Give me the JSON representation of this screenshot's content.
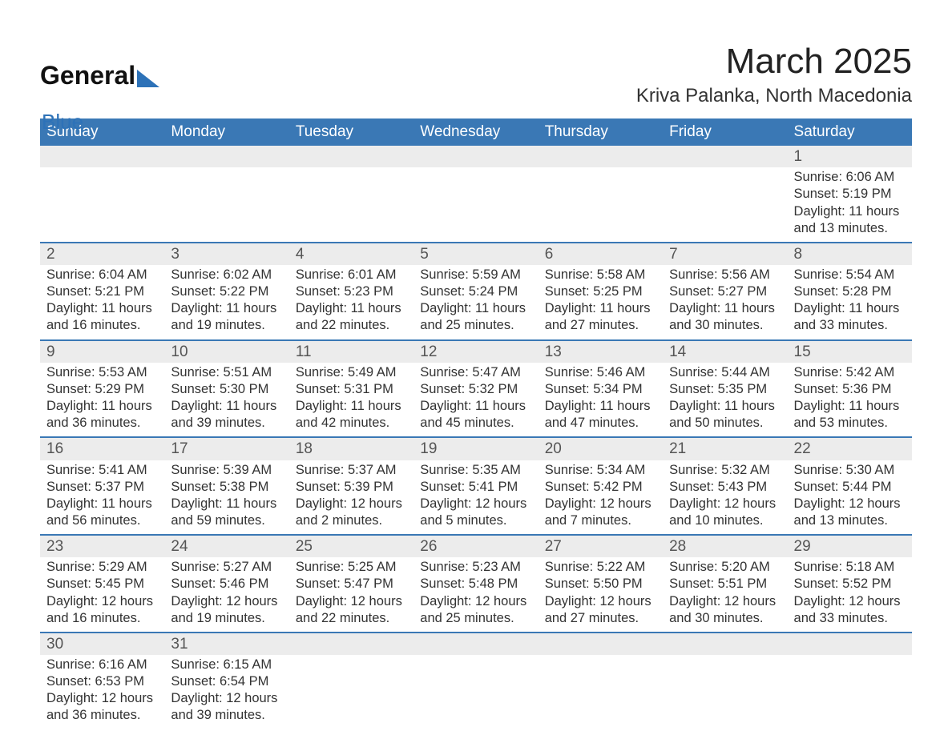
{
  "logo": {
    "word1": "General",
    "word2": "Blue"
  },
  "title": "March 2025",
  "location": "Kriva Palanka, North Macedonia",
  "colors": {
    "header_bg": "#3a78b5",
    "header_text": "#ffffff",
    "row_separator": "#3a78b5",
    "daynum_bg": "#ececec",
    "body_text": "#333333",
    "logo_accent": "#2d72b8"
  },
  "day_headers": [
    "Sunday",
    "Monday",
    "Tuesday",
    "Wednesday",
    "Thursday",
    "Friday",
    "Saturday"
  ],
  "weeks": [
    [
      null,
      null,
      null,
      null,
      null,
      null,
      {
        "n": "1",
        "sr": "Sunrise: 6:06 AM",
        "ss": "Sunset: 5:19 PM",
        "d1": "Daylight: 11 hours",
        "d2": "and 13 minutes."
      }
    ],
    [
      {
        "n": "2",
        "sr": "Sunrise: 6:04 AM",
        "ss": "Sunset: 5:21 PM",
        "d1": "Daylight: 11 hours",
        "d2": "and 16 minutes."
      },
      {
        "n": "3",
        "sr": "Sunrise: 6:02 AM",
        "ss": "Sunset: 5:22 PM",
        "d1": "Daylight: 11 hours",
        "d2": "and 19 minutes."
      },
      {
        "n": "4",
        "sr": "Sunrise: 6:01 AM",
        "ss": "Sunset: 5:23 PM",
        "d1": "Daylight: 11 hours",
        "d2": "and 22 minutes."
      },
      {
        "n": "5",
        "sr": "Sunrise: 5:59 AM",
        "ss": "Sunset: 5:24 PM",
        "d1": "Daylight: 11 hours",
        "d2": "and 25 minutes."
      },
      {
        "n": "6",
        "sr": "Sunrise: 5:58 AM",
        "ss": "Sunset: 5:25 PM",
        "d1": "Daylight: 11 hours",
        "d2": "and 27 minutes."
      },
      {
        "n": "7",
        "sr": "Sunrise: 5:56 AM",
        "ss": "Sunset: 5:27 PM",
        "d1": "Daylight: 11 hours",
        "d2": "and 30 minutes."
      },
      {
        "n": "8",
        "sr": "Sunrise: 5:54 AM",
        "ss": "Sunset: 5:28 PM",
        "d1": "Daylight: 11 hours",
        "d2": "and 33 minutes."
      }
    ],
    [
      {
        "n": "9",
        "sr": "Sunrise: 5:53 AM",
        "ss": "Sunset: 5:29 PM",
        "d1": "Daylight: 11 hours",
        "d2": "and 36 minutes."
      },
      {
        "n": "10",
        "sr": "Sunrise: 5:51 AM",
        "ss": "Sunset: 5:30 PM",
        "d1": "Daylight: 11 hours",
        "d2": "and 39 minutes."
      },
      {
        "n": "11",
        "sr": "Sunrise: 5:49 AM",
        "ss": "Sunset: 5:31 PM",
        "d1": "Daylight: 11 hours",
        "d2": "and 42 minutes."
      },
      {
        "n": "12",
        "sr": "Sunrise: 5:47 AM",
        "ss": "Sunset: 5:32 PM",
        "d1": "Daylight: 11 hours",
        "d2": "and 45 minutes."
      },
      {
        "n": "13",
        "sr": "Sunrise: 5:46 AM",
        "ss": "Sunset: 5:34 PM",
        "d1": "Daylight: 11 hours",
        "d2": "and 47 minutes."
      },
      {
        "n": "14",
        "sr": "Sunrise: 5:44 AM",
        "ss": "Sunset: 5:35 PM",
        "d1": "Daylight: 11 hours",
        "d2": "and 50 minutes."
      },
      {
        "n": "15",
        "sr": "Sunrise: 5:42 AM",
        "ss": "Sunset: 5:36 PM",
        "d1": "Daylight: 11 hours",
        "d2": "and 53 minutes."
      }
    ],
    [
      {
        "n": "16",
        "sr": "Sunrise: 5:41 AM",
        "ss": "Sunset: 5:37 PM",
        "d1": "Daylight: 11 hours",
        "d2": "and 56 minutes."
      },
      {
        "n": "17",
        "sr": "Sunrise: 5:39 AM",
        "ss": "Sunset: 5:38 PM",
        "d1": "Daylight: 11 hours",
        "d2": "and 59 minutes."
      },
      {
        "n": "18",
        "sr": "Sunrise: 5:37 AM",
        "ss": "Sunset: 5:39 PM",
        "d1": "Daylight: 12 hours",
        "d2": "and 2 minutes."
      },
      {
        "n": "19",
        "sr": "Sunrise: 5:35 AM",
        "ss": "Sunset: 5:41 PM",
        "d1": "Daylight: 12 hours",
        "d2": "and 5 minutes."
      },
      {
        "n": "20",
        "sr": "Sunrise: 5:34 AM",
        "ss": "Sunset: 5:42 PM",
        "d1": "Daylight: 12 hours",
        "d2": "and 7 minutes."
      },
      {
        "n": "21",
        "sr": "Sunrise: 5:32 AM",
        "ss": "Sunset: 5:43 PM",
        "d1": "Daylight: 12 hours",
        "d2": "and 10 minutes."
      },
      {
        "n": "22",
        "sr": "Sunrise: 5:30 AM",
        "ss": "Sunset: 5:44 PM",
        "d1": "Daylight: 12 hours",
        "d2": "and 13 minutes."
      }
    ],
    [
      {
        "n": "23",
        "sr": "Sunrise: 5:29 AM",
        "ss": "Sunset: 5:45 PM",
        "d1": "Daylight: 12 hours",
        "d2": "and 16 minutes."
      },
      {
        "n": "24",
        "sr": "Sunrise: 5:27 AM",
        "ss": "Sunset: 5:46 PM",
        "d1": "Daylight: 12 hours",
        "d2": "and 19 minutes."
      },
      {
        "n": "25",
        "sr": "Sunrise: 5:25 AM",
        "ss": "Sunset: 5:47 PM",
        "d1": "Daylight: 12 hours",
        "d2": "and 22 minutes."
      },
      {
        "n": "26",
        "sr": "Sunrise: 5:23 AM",
        "ss": "Sunset: 5:48 PM",
        "d1": "Daylight: 12 hours",
        "d2": "and 25 minutes."
      },
      {
        "n": "27",
        "sr": "Sunrise: 5:22 AM",
        "ss": "Sunset: 5:50 PM",
        "d1": "Daylight: 12 hours",
        "d2": "and 27 minutes."
      },
      {
        "n": "28",
        "sr": "Sunrise: 5:20 AM",
        "ss": "Sunset: 5:51 PM",
        "d1": "Daylight: 12 hours",
        "d2": "and 30 minutes."
      },
      {
        "n": "29",
        "sr": "Sunrise: 5:18 AM",
        "ss": "Sunset: 5:52 PM",
        "d1": "Daylight: 12 hours",
        "d2": "and 33 minutes."
      }
    ],
    [
      {
        "n": "30",
        "sr": "Sunrise: 6:16 AM",
        "ss": "Sunset: 6:53 PM",
        "d1": "Daylight: 12 hours",
        "d2": "and 36 minutes."
      },
      {
        "n": "31",
        "sr": "Sunrise: 6:15 AM",
        "ss": "Sunset: 6:54 PM",
        "d1": "Daylight: 12 hours",
        "d2": "and 39 minutes."
      },
      null,
      null,
      null,
      null,
      null
    ]
  ]
}
